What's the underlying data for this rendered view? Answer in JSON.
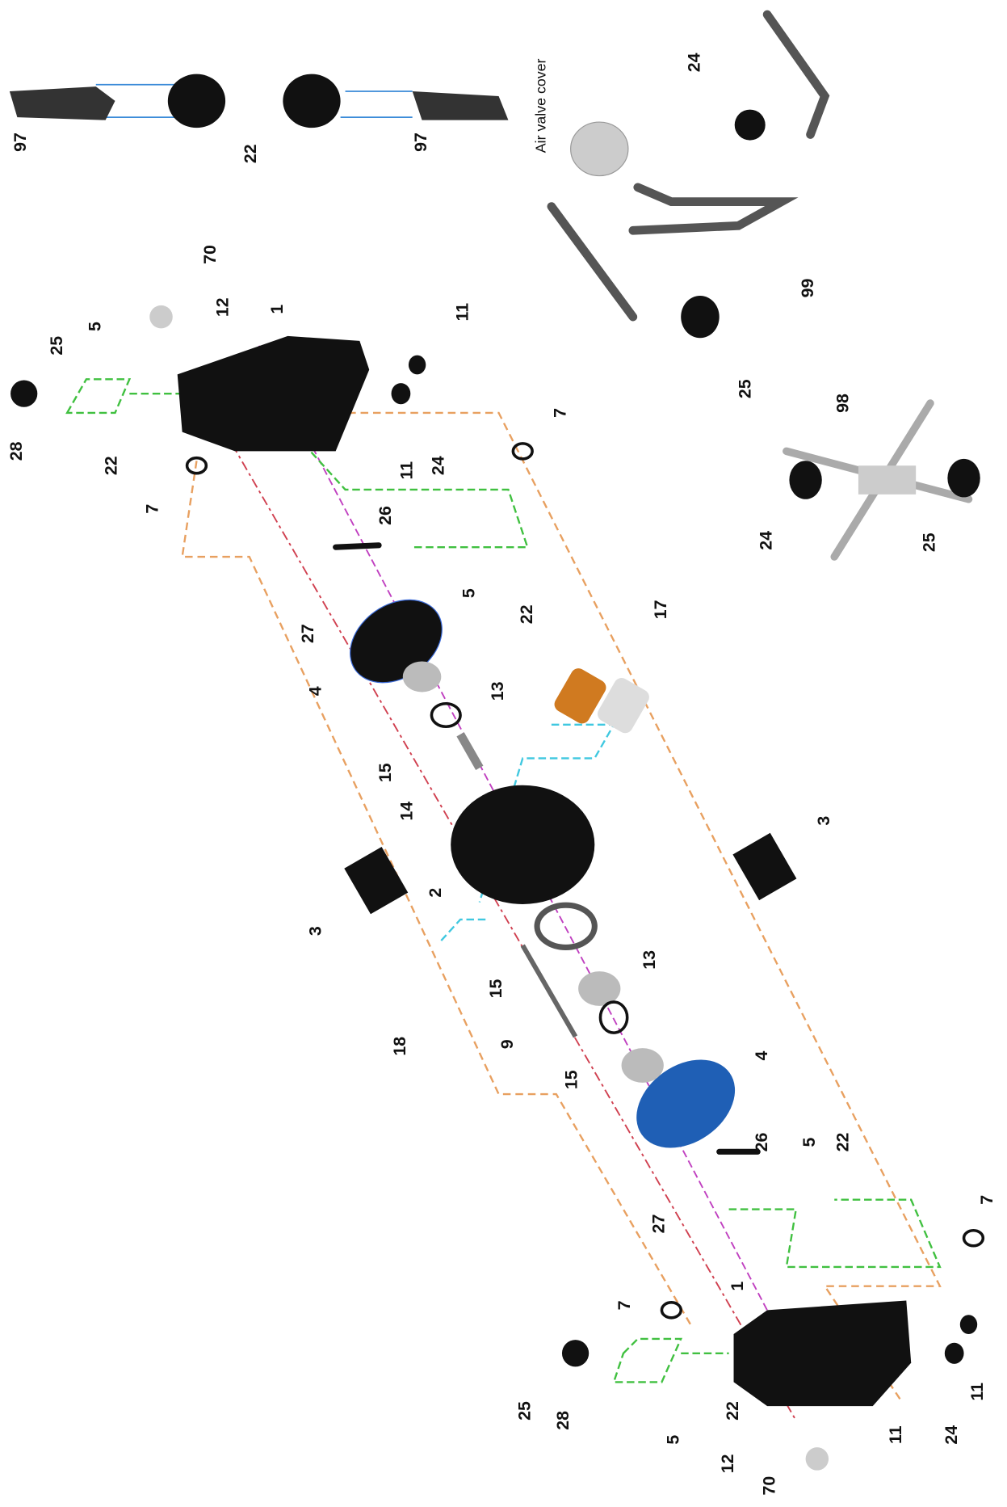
{
  "labels": [
    "97",
    "22",
    "97",
    "Air valve cover",
    "24",
    "99",
    "25",
    "98",
    "24",
    "25",
    "70",
    "12",
    "1",
    "11",
    "5",
    "25",
    "28",
    "22",
    "7",
    "11",
    "24",
    "7",
    "26",
    "27",
    "5",
    "22",
    "17",
    "4",
    "13",
    "15",
    "14",
    "2",
    "3",
    "3",
    "13",
    "15",
    "18",
    "9",
    "15",
    "4",
    "26",
    "22",
    "5",
    "27",
    "7",
    "7",
    "1",
    "25",
    "28",
    "22",
    "5",
    "12",
    "70",
    "11",
    "24",
    "11"
  ]
}
